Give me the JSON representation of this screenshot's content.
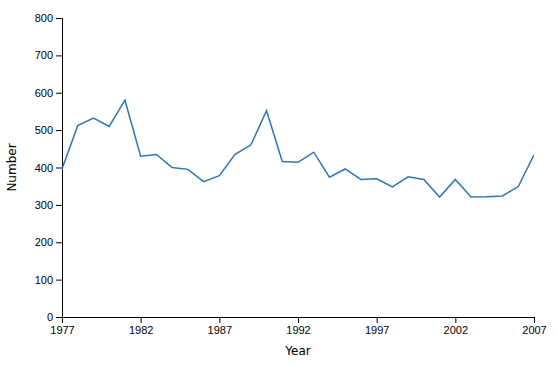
{
  "chart_data": {
    "type": "line",
    "x": [
      1977,
      1978,
      1979,
      1980,
      1981,
      1982,
      1983,
      1984,
      1985,
      1986,
      1987,
      1988,
      1989,
      1990,
      1991,
      1992,
      1993,
      1994,
      1995,
      1996,
      1997,
      1998,
      1999,
      2000,
      2001,
      2002,
      2003,
      2004,
      2005,
      2006,
      2007
    ],
    "values": [
      396,
      512,
      532,
      510,
      580,
      430,
      435,
      400,
      395,
      362,
      378,
      435,
      460,
      552,
      416,
      414,
      441,
      374,
      396,
      368,
      370,
      348,
      375,
      368,
      321,
      368,
      321,
      322,
      324,
      349,
      434
    ],
    "color": "#2e75b6",
    "xlabel": "Year",
    "ylabel": "Number",
    "xlim": [
      1977,
      2007
    ],
    "ylim": [
      0,
      800
    ],
    "xticks": [
      1977,
      1982,
      1987,
      1992,
      1997,
      2002,
      2007
    ],
    "yticks": [
      0,
      100,
      200,
      300,
      400,
      500,
      600,
      700,
      800
    ]
  }
}
